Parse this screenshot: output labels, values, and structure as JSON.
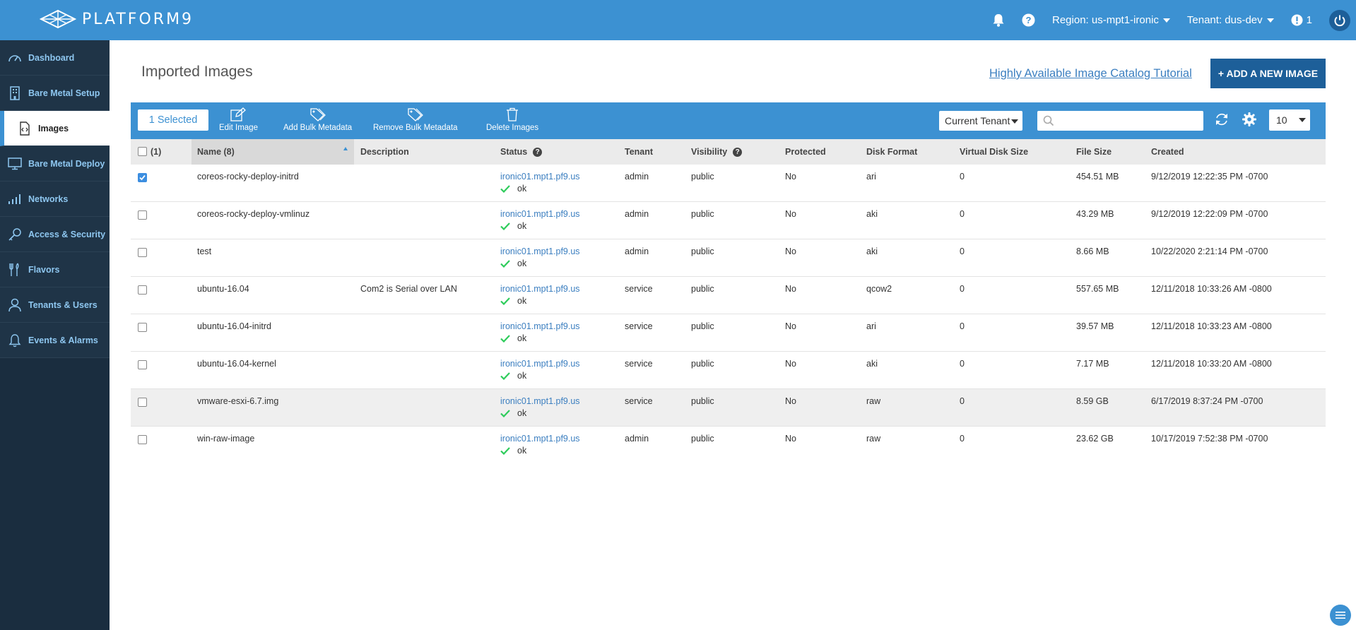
{
  "topbar": {
    "brand": "PLATFORM9",
    "region": "Region: us-mpt1-ironic",
    "tenant": "Tenant: dus-dev",
    "alerts": "1"
  },
  "sidebar": {
    "items": [
      {
        "label": "Dashboard"
      },
      {
        "label": "Bare Metal Setup"
      },
      {
        "label": "Images"
      },
      {
        "label": "Bare Metal Deploy"
      },
      {
        "label": "Networks"
      },
      {
        "label": "Access & Security"
      },
      {
        "label": "Flavors"
      },
      {
        "label": "Tenants & Users"
      },
      {
        "label": "Events & Alarms"
      }
    ]
  },
  "main": {
    "title": "Imported Images",
    "tutorial_link": "Highly Available Image Catalog Tutorial",
    "add_button": "+ ADD A NEW IMAGE"
  },
  "toolbar": {
    "selected": "1 Selected",
    "edit": "Edit Image",
    "add_meta": "Add Bulk Metadata",
    "remove_meta": "Remove Bulk Metadata",
    "delete": "Delete Images",
    "tenant_filter": "Current Tenant",
    "search_placeholder": "",
    "per_page": "10"
  },
  "table": {
    "headers": {
      "select": "(1)",
      "name": "Name (8)",
      "description": "Description",
      "status": "Status",
      "tenant": "Tenant",
      "visibility": "Visibility",
      "protected": "Protected",
      "disk_format": "Disk Format",
      "virtual_disk_size": "Virtual Disk Size",
      "file_size": "File Size",
      "created": "Created"
    },
    "rows": [
      {
        "name": "coreos-rocky-deploy-initrd",
        "description": "",
        "host": "ironic01.mpt1.pf9.us",
        "status": "ok",
        "tenant": "admin",
        "visibility": "public",
        "protected": "No",
        "disk_format": "ari",
        "vsize": "0",
        "file_size": "454.51 MB",
        "created": "9/12/2019 12:22:35 PM -0700",
        "checked": true
      },
      {
        "name": "coreos-rocky-deploy-vmlinuz",
        "description": "",
        "host": "ironic01.mpt1.pf9.us",
        "status": "ok",
        "tenant": "admin",
        "visibility": "public",
        "protected": "No",
        "disk_format": "aki",
        "vsize": "0",
        "file_size": "43.29 MB",
        "created": "9/12/2019 12:22:09 PM -0700",
        "checked": false
      },
      {
        "name": "test",
        "description": "",
        "host": "ironic01.mpt1.pf9.us",
        "status": "ok",
        "tenant": "admin",
        "visibility": "public",
        "protected": "No",
        "disk_format": "aki",
        "vsize": "0",
        "file_size": "8.66 MB",
        "created": "10/22/2020 2:21:14 PM -0700",
        "checked": false
      },
      {
        "name": "ubuntu-16.04",
        "description": "Com2 is Serial over LAN",
        "host": "ironic01.mpt1.pf9.us",
        "status": "ok",
        "tenant": "service",
        "visibility": "public",
        "protected": "No",
        "disk_format": "qcow2",
        "vsize": "0",
        "file_size": "557.65 MB",
        "created": "12/11/2018 10:33:26 AM -0800",
        "checked": false
      },
      {
        "name": "ubuntu-16.04-initrd",
        "description": "",
        "host": "ironic01.mpt1.pf9.us",
        "status": "ok",
        "tenant": "service",
        "visibility": "public",
        "protected": "No",
        "disk_format": "ari",
        "vsize": "0",
        "file_size": "39.57 MB",
        "created": "12/11/2018 10:33:23 AM -0800",
        "checked": false
      },
      {
        "name": "ubuntu-16.04-kernel",
        "description": "",
        "host": "ironic01.mpt1.pf9.us",
        "status": "ok",
        "tenant": "service",
        "visibility": "public",
        "protected": "No",
        "disk_format": "aki",
        "vsize": "0",
        "file_size": "7.17 MB",
        "created": "12/11/2018 10:33:20 AM -0800",
        "checked": false
      },
      {
        "name": "vmware-esxi-6.7.img",
        "description": "",
        "host": "ironic01.mpt1.pf9.us",
        "status": "ok",
        "tenant": "service",
        "visibility": "public",
        "protected": "No",
        "disk_format": "raw",
        "vsize": "0",
        "file_size": "8.59 GB",
        "created": "6/17/2019 8:37:24 PM -0700",
        "checked": false
      },
      {
        "name": "win-raw-image",
        "description": "",
        "host": "ironic01.mpt1.pf9.us",
        "status": "ok",
        "tenant": "admin",
        "visibility": "public",
        "protected": "No",
        "disk_format": "raw",
        "vsize": "0",
        "file_size": "23.62 GB",
        "created": "10/17/2019 7:52:38 PM -0700",
        "checked": false
      }
    ]
  },
  "colors": {
    "accent": "#3c91d2",
    "sidebar_bg": "#1a2d3f",
    "ok_green": "#2ecc5b",
    "dark_button": "#1d5f99"
  }
}
